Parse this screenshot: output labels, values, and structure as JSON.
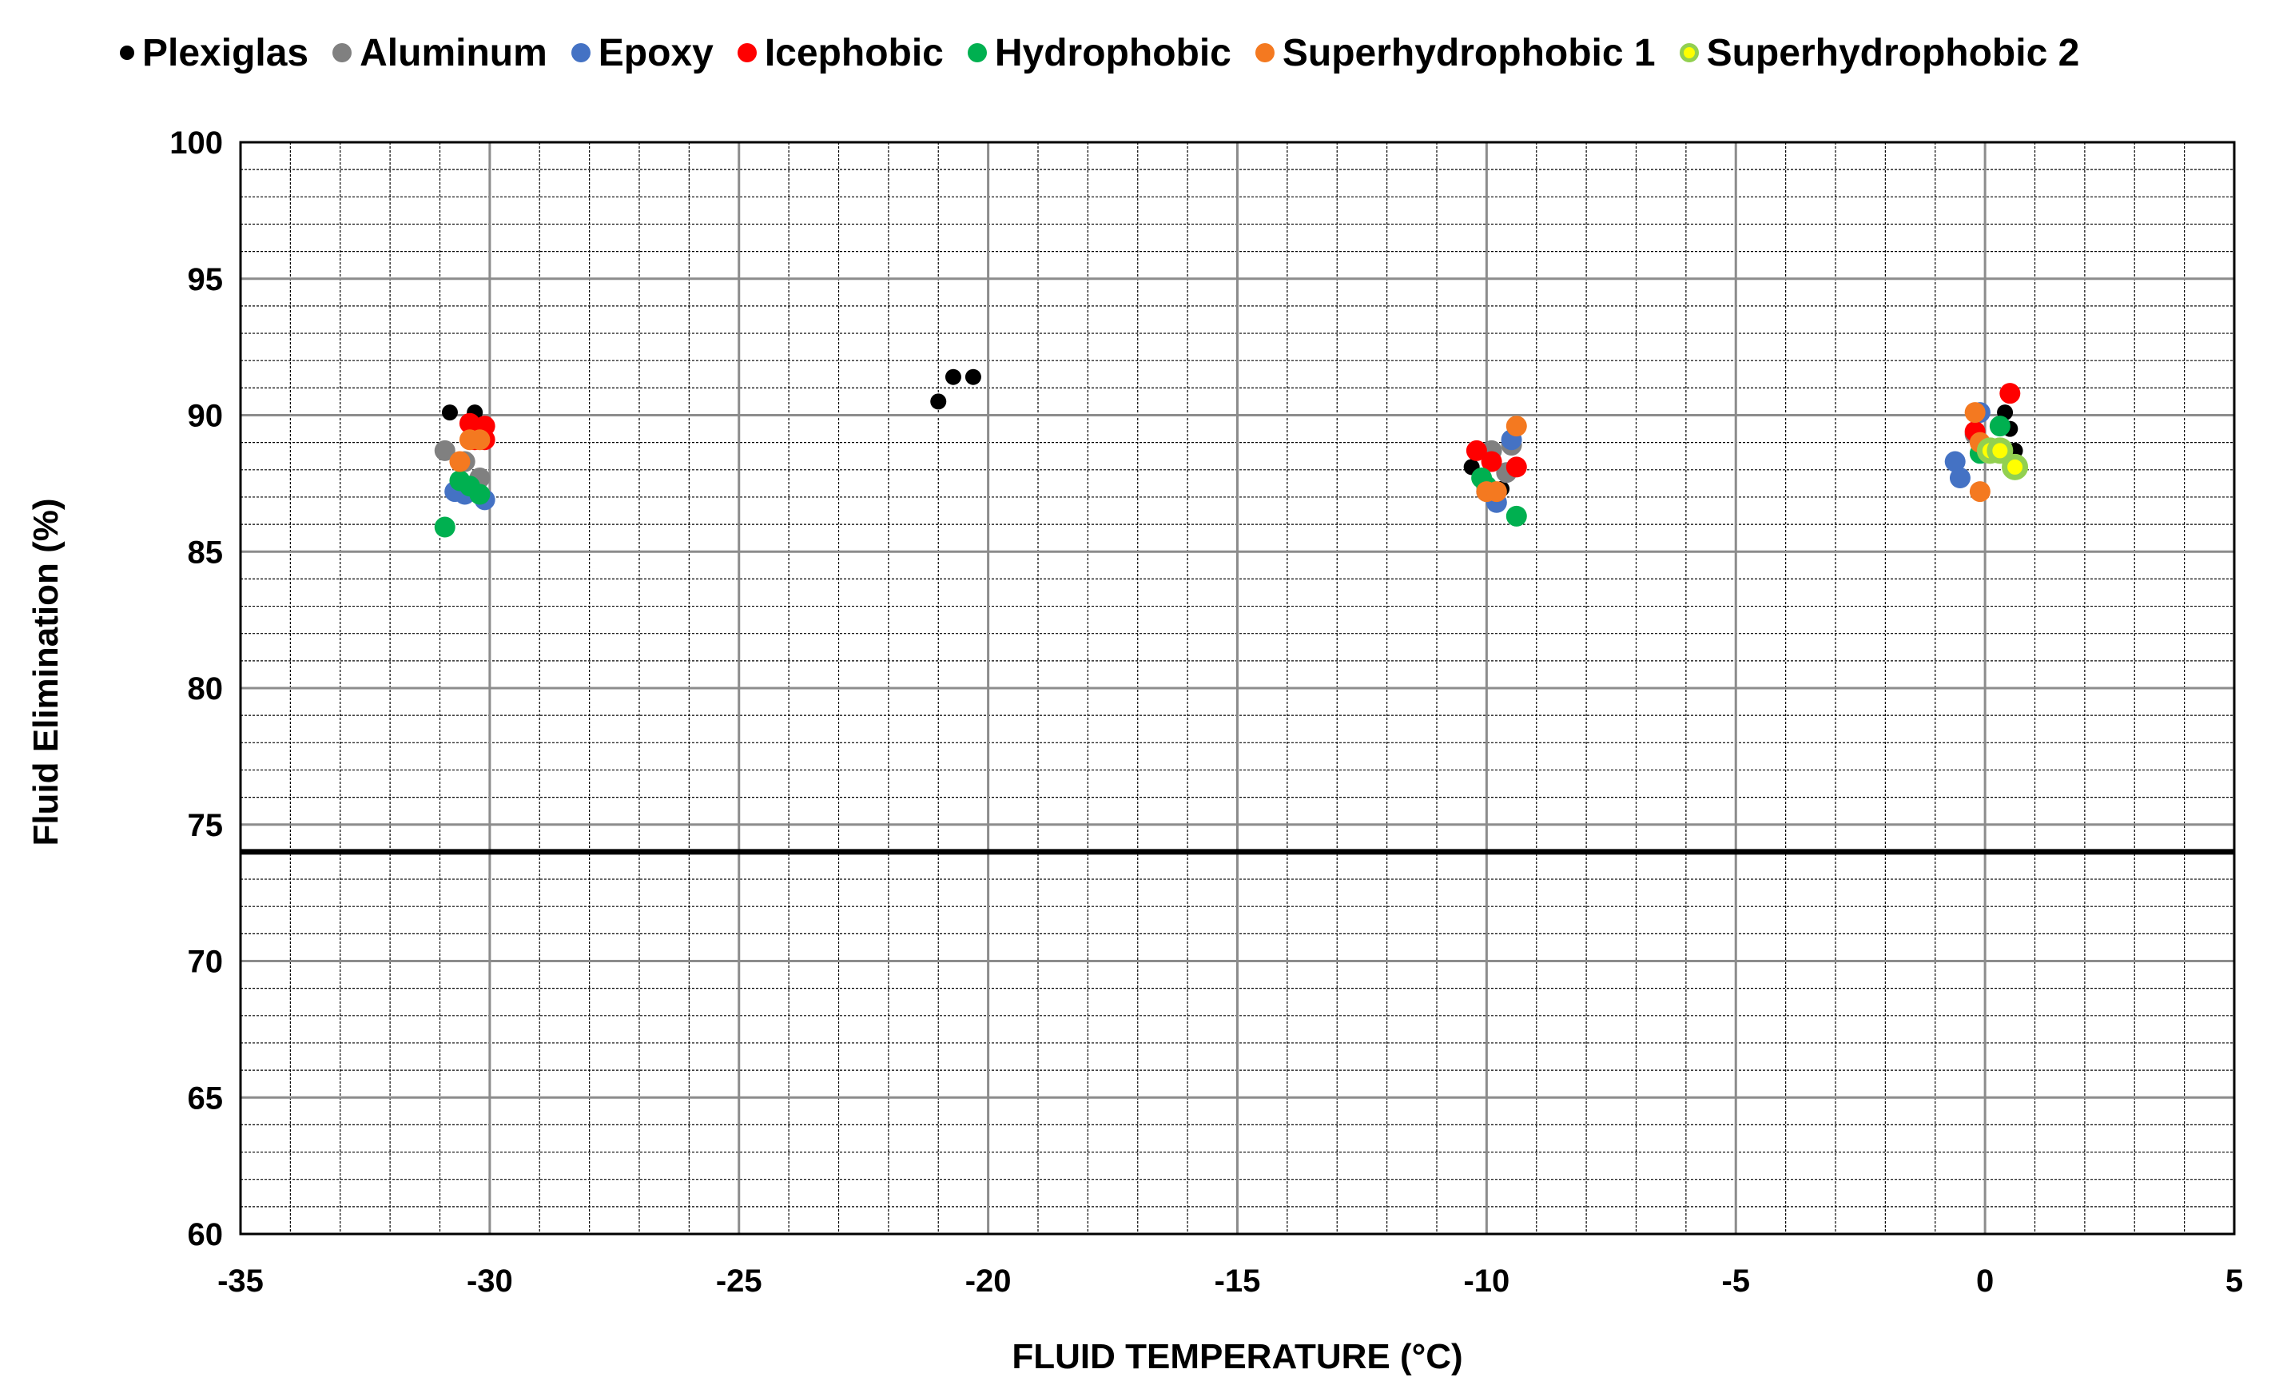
{
  "chart_data": {
    "type": "scatter",
    "title": "",
    "xlabel": "FLUID TEMPERATURE (°C)",
    "ylabel": "Fluid Elimination (%)",
    "xlim": [
      -35,
      5
    ],
    "ylim": [
      60,
      100
    ],
    "x_ticks": [
      -35,
      -30,
      -25,
      -20,
      -15,
      -10,
      -5,
      0,
      5
    ],
    "x_tick_labels": [
      "-35",
      "-30",
      "-25",
      "-20",
      "-15",
      "-10",
      "-5",
      "0",
      "5"
    ],
    "y_ticks": [
      60,
      65,
      70,
      75,
      80,
      85,
      90,
      95,
      100
    ],
    "y_tick_labels": [
      "60",
      "65",
      "70",
      "75",
      "80",
      "85",
      "90",
      "95",
      "100"
    ],
    "x_minor_step": 1,
    "y_minor_step": 1,
    "grid": true,
    "legend_position": "top",
    "reference_line": {
      "y": 74
    },
    "series": [
      {
        "name": "Plexiglas",
        "color": "#000000",
        "marker_size": "small",
        "points": [
          [
            -30.8,
            90.1
          ],
          [
            -30.3,
            90.1
          ],
          [
            -21.0,
            90.5
          ],
          [
            -20.7,
            91.4
          ],
          [
            -20.3,
            91.4
          ],
          [
            -10.3,
            88.1
          ],
          [
            -9.7,
            87.3
          ],
          [
            0.4,
            90.1
          ],
          [
            0.5,
            89.5
          ],
          [
            0.6,
            88.7
          ]
        ]
      },
      {
        "name": "Aluminum",
        "color": "#808080",
        "marker_size": "large",
        "points": [
          [
            -30.9,
            88.7
          ],
          [
            -30.5,
            88.3
          ],
          [
            -30.2,
            87.7
          ],
          [
            -9.9,
            88.7
          ],
          [
            -9.6,
            87.9
          ],
          [
            -9.5,
            88.9
          ],
          [
            -0.2,
            89.3
          ],
          [
            0.1,
            88.7
          ]
        ]
      },
      {
        "name": "Epoxy",
        "color": "#4472C4",
        "marker_size": "large",
        "points": [
          [
            -30.7,
            87.2
          ],
          [
            -30.5,
            87.1
          ],
          [
            -30.1,
            86.9
          ],
          [
            -10.0,
            87.2
          ],
          [
            -9.8,
            86.8
          ],
          [
            -9.5,
            89.1
          ],
          [
            -0.6,
            88.3
          ],
          [
            -0.5,
            87.7
          ],
          [
            -0.1,
            90.1
          ]
        ]
      },
      {
        "name": "Icephobic",
        "color": "#FF0000",
        "marker_size": "large",
        "points": [
          [
            -30.4,
            89.7
          ],
          [
            -30.3,
            89.1
          ],
          [
            -30.1,
            89.6
          ],
          [
            -30.1,
            89.1
          ],
          [
            -10.2,
            88.7
          ],
          [
            -9.9,
            88.3
          ],
          [
            -9.4,
            88.1
          ],
          [
            -0.2,
            89.4
          ],
          [
            0.5,
            90.8
          ]
        ]
      },
      {
        "name": "Hydrophobic",
        "color": "#00B050",
        "marker_size": "large",
        "points": [
          [
            -30.9,
            85.9
          ],
          [
            -30.6,
            87.6
          ],
          [
            -30.4,
            87.4
          ],
          [
            -30.2,
            87.1
          ],
          [
            -10.1,
            87.7
          ],
          [
            -10.0,
            87.4
          ],
          [
            -9.4,
            86.3
          ],
          [
            -0.1,
            88.6
          ],
          [
            0.3,
            89.6
          ]
        ]
      },
      {
        "name": "Superhydrophobic 1",
        "color": "#F47920",
        "marker_size": "large",
        "points": [
          [
            -30.6,
            88.3
          ],
          [
            -30.4,
            89.1
          ],
          [
            -30.2,
            89.1
          ],
          [
            -10.0,
            87.2
          ],
          [
            -9.8,
            87.2
          ],
          [
            -9.4,
            89.6
          ],
          [
            -0.2,
            90.1
          ],
          [
            -0.1,
            89.0
          ],
          [
            -0.1,
            87.2
          ]
        ]
      },
      {
        "name": "Superhydrophobic 2",
        "color": "#FFFF00",
        "edge_color": "#92D050",
        "marker_size": "large",
        "points": [
          [
            0.1,
            88.7
          ],
          [
            0.3,
            88.7
          ],
          [
            0.6,
            88.1
          ]
        ]
      }
    ]
  }
}
